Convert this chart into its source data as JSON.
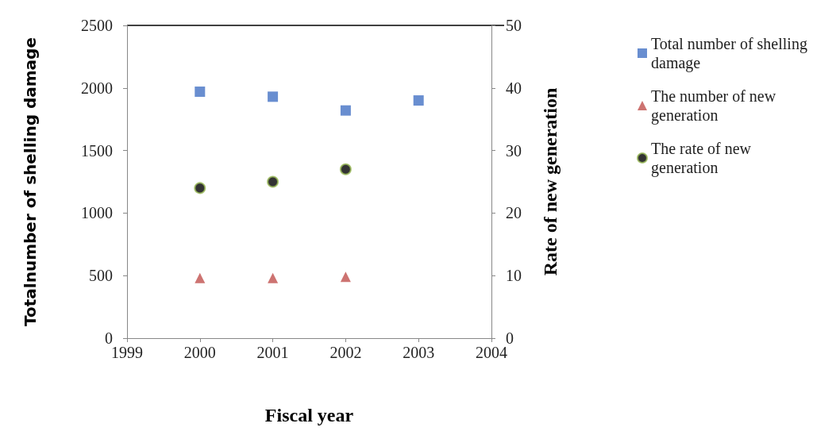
{
  "chart_data": {
    "type": "scatter",
    "xlabel": "Fiscal year",
    "ylabel": "Totalnumber of shelling damage",
    "y2label": "Rate of new generation",
    "x": [
      2000,
      2001,
      2002,
      2003
    ],
    "series": [
      {
        "name": "Total number of shelling damage",
        "color": "#4472c4",
        "marker": "square",
        "values": [
          1970,
          1930,
          1820,
          1900
        ]
      },
      {
        "name": "The number of new generation",
        "color": "#c0504d",
        "marker": "triangle",
        "values": [
          480,
          480,
          490,
          null
        ]
      },
      {
        "name": "The rate of new generation",
        "color": "#000000",
        "marker": "circle",
        "axis": "y2",
        "values": [
          24,
          25,
          27,
          null
        ]
      }
    ],
    "xlim": [
      1999,
      2004
    ],
    "xticks": [
      1999,
      2000,
      2001,
      2002,
      2003,
      2004
    ],
    "ylim": [
      0,
      2500
    ],
    "yticks": [
      0,
      500,
      1000,
      1500,
      2000,
      2500
    ],
    "y2lim": [
      0,
      50
    ],
    "y2ticks": [
      0,
      10,
      20,
      30,
      40,
      50
    ],
    "grid": false,
    "legend": "right"
  }
}
